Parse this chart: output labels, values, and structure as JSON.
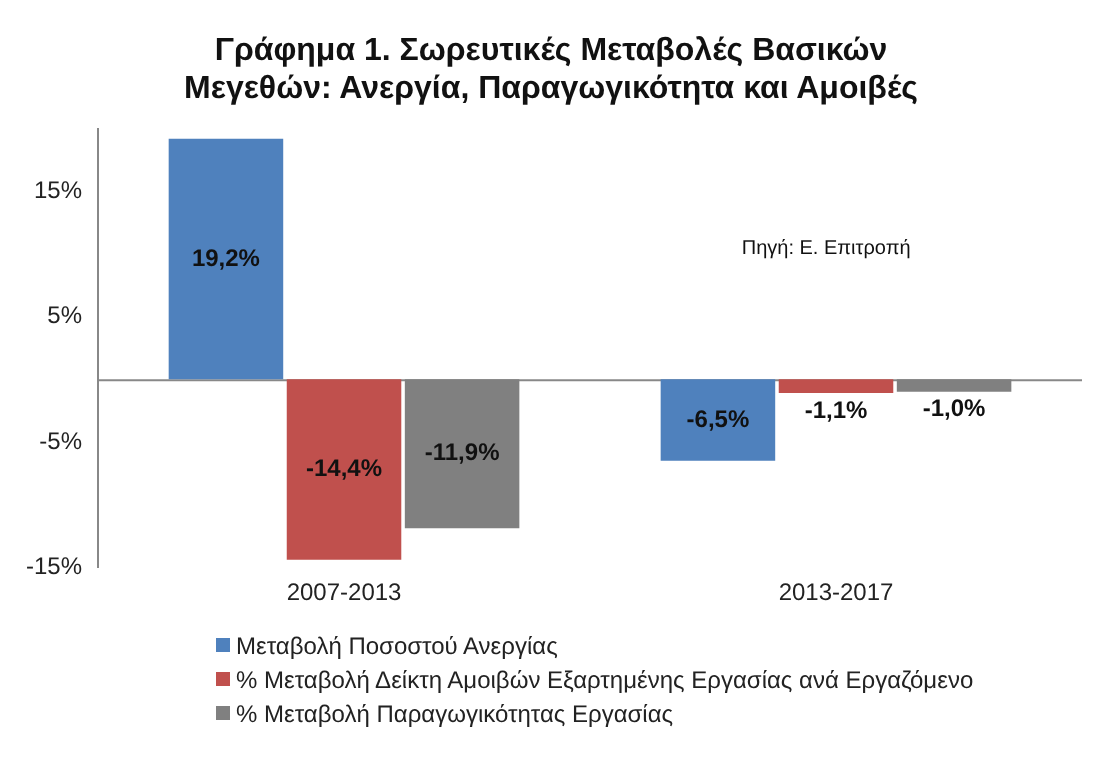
{
  "chart_data": {
    "type": "bar",
    "title": "Γράφημα 1. Σωρευτικές Μεταβολές Βασικών Μεγεθών: Ανεργία, Παραγωγικότητα και Αμοιβές",
    "categories": [
      "2007-2013",
      "2013-2017"
    ],
    "series": [
      {
        "name": "Μεταβολή Ποσοστού Ανεργίας",
        "color": "#4f81bd",
        "values": [
          19.2,
          -6.5
        ],
        "value_labels": [
          "19,2%",
          "-6,5%"
        ]
      },
      {
        "name": "% Μεταβολή Δείκτη Αμοιβών Εξαρτημένης Εργασίας ανά Εργαζόμενο",
        "color": "#c0504d",
        "values": [
          -14.4,
          -1.1
        ],
        "value_labels": [
          "-14,4%",
          "-1,1%"
        ]
      },
      {
        "name": "% Μεταβολή Παραγωγικότητας Εργασίας",
        "color": "#808080",
        "values": [
          -11.9,
          -1.0
        ],
        "value_labels": [
          "-11,9%",
          "-1,0%"
        ]
      }
    ],
    "ylim": [
      -15,
      20
    ],
    "yticks": [
      {
        "value": -15,
        "label": "-15%"
      },
      {
        "value": -5,
        "label": "-5%"
      },
      {
        "value": 5,
        "label": "5%"
      },
      {
        "value": 15,
        "label": "15%"
      }
    ],
    "annotations": [
      "Πηγή: Ε. Επιτροπή"
    ],
    "grid": false,
    "legend": "bottom"
  }
}
